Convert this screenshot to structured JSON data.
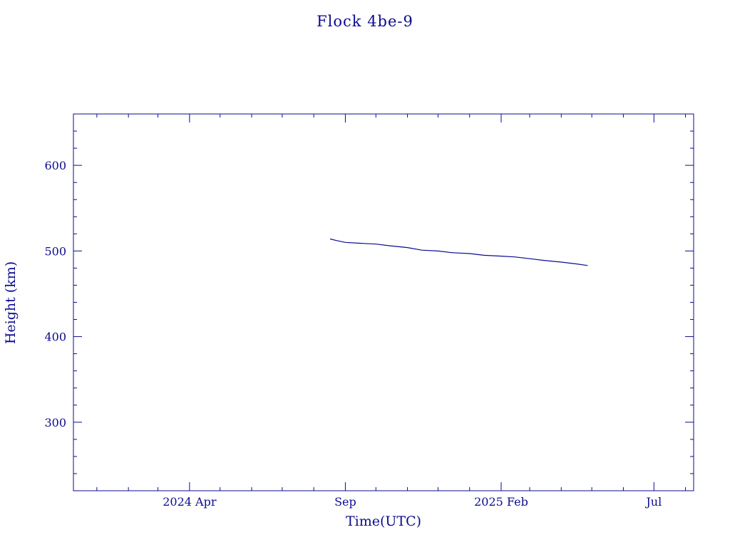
{
  "chart_data": {
    "type": "line",
    "title": "Flock 4be-9",
    "xlabel": "Time(UTC)",
    "ylabel": "Height (km)",
    "xlim": [
      "2023-12-09",
      "2025-08-09"
    ],
    "ylim": [
      220,
      660
    ],
    "x_ticks": [
      {
        "date": "2024-04-01",
        "label": "2024 Apr"
      },
      {
        "date": "2024-09-01",
        "label": "Sep"
      },
      {
        "date": "2025-02-01",
        "label": "2025 Feb"
      },
      {
        "date": "2025-07-01",
        "label": "Jul"
      }
    ],
    "x_minor_ticks": [
      "2024-01-01",
      "2024-02-01",
      "2024-03-01",
      "2024-05-01",
      "2024-06-01",
      "2024-07-01",
      "2024-08-01",
      "2024-10-01",
      "2024-11-01",
      "2024-12-01",
      "2025-01-01",
      "2025-03-01",
      "2025-04-01",
      "2025-05-01",
      "2025-06-01",
      "2025-08-01"
    ],
    "y_ticks": [
      300,
      400,
      500,
      600
    ],
    "y_minor_step": 20,
    "grid": false,
    "series": [
      {
        "color": "#0b0b8f",
        "x": [
          "2024-08-17",
          "2024-08-24",
          "2024-09-01",
          "2024-09-15",
          "2024-10-01",
          "2024-10-15",
          "2024-11-01",
          "2024-11-15",
          "2024-12-01",
          "2024-12-15",
          "2025-01-01",
          "2025-01-15",
          "2025-02-01",
          "2025-02-15",
          "2025-03-01",
          "2025-03-15",
          "2025-04-01",
          "2025-04-15",
          "2025-04-27"
        ],
        "y": [
          514,
          512,
          510,
          509,
          508,
          506,
          504,
          501,
          500,
          498,
          497,
          495,
          494,
          493,
          491,
          489,
          487,
          485,
          483
        ]
      }
    ]
  }
}
